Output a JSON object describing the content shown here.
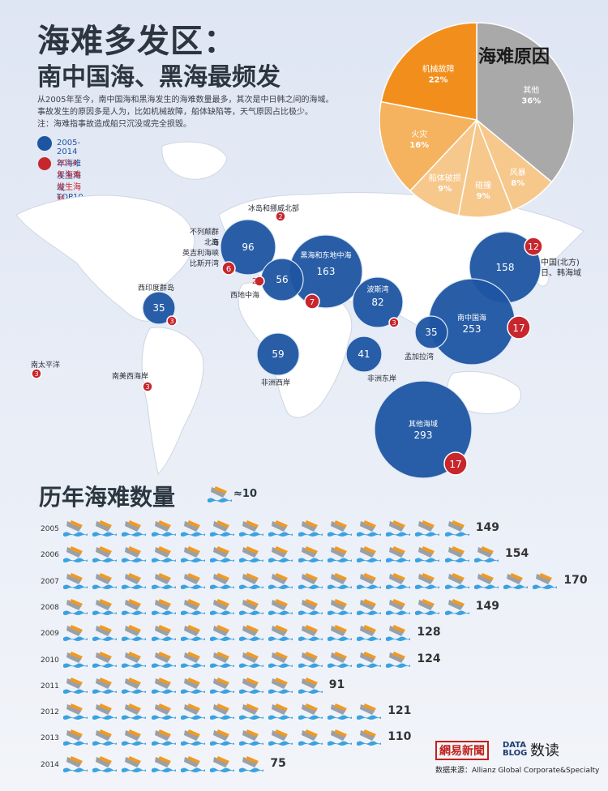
{
  "header": {
    "title_line1": "海难多发区：",
    "title_line2": "南中国海、黑海最频发",
    "desc_line1": "从2005年至今，南中国海和黑海发生的海难数量最多，其次是中日韩之间的海域。",
    "desc_line2": "事故发生的原因多是人为，比如机械故障，船体缺陷等，天气原因占比极少。",
    "desc_line3": "注：海难指事故造成船只沉没或完全损毁。"
  },
  "legend": {
    "blue_label": "2005-2014年海难发生海域TOP10",
    "red_label": "2014年海难发生海域TOP10",
    "blue_color": "#1d55a2",
    "red_color": "#c8262d"
  },
  "pie_title": "海难原因",
  "chart_data": [
    {
      "type": "pie",
      "title": "海难原因",
      "slices": [
        {
          "label": "其他",
          "value": 36,
          "text": "36%",
          "color": "#a9a9a9"
        },
        {
          "label": "风暴",
          "value": 8,
          "text": "8%",
          "color": "#f6c88c"
        },
        {
          "label": "碰撞",
          "value": 9,
          "text": "9%",
          "color": "#f6c88c"
        },
        {
          "label": "船体破损",
          "value": 9,
          "text": "9%",
          "color": "#f6c88c"
        },
        {
          "label": "火灾",
          "value": 16,
          "text": "16%",
          "color": "#f6b35f"
        },
        {
          "label": "机械故障",
          "value": 22,
          "text": "22%",
          "color": "#f28f1c"
        }
      ]
    },
    {
      "type": "bubble-map",
      "series": [
        {
          "name": "2005-2014年海难发生海域TOP10",
          "points": [
            {
              "label": "不列颠群岛 北海 英吉利海峡 比斯开湾",
              "value": 96
            },
            {
              "label": "黑海和东地中海",
              "value": 163
            },
            {
              "label": "西地中海",
              "value": 56
            },
            {
              "label": "中国(北方) 日、韩海域",
              "value": 158
            },
            {
              "label": "南中国海",
              "value": 253
            },
            {
              "label": "波斯湾",
              "value": 82
            },
            {
              "label": "西印度群岛",
              "value": 35
            },
            {
              "label": "孟加拉湾",
              "value": 35
            },
            {
              "label": "非洲西岸",
              "value": 59
            },
            {
              "label": "非洲东岸",
              "value": 41
            },
            {
              "label": "其他海域",
              "value": 293
            }
          ]
        },
        {
          "name": "2014年海难发生海域TOP10",
          "points": [
            {
              "label": "冰岛和挪威北部",
              "value": 2
            },
            {
              "label": "不列颠群岛 北海 英吉利海峡 比斯开湾",
              "value": 6
            },
            {
              "label": "西地中海",
              "value": 2
            },
            {
              "label": "黑海和东地中海",
              "value": 7
            },
            {
              "label": "中国(北方) 日、韩海域",
              "value": 12
            },
            {
              "label": "南中国海",
              "value": 17
            },
            {
              "label": "波斯湾",
              "value": 3
            },
            {
              "label": "西印度群岛",
              "value": 3
            },
            {
              "label": "南太平洋",
              "value": 3
            },
            {
              "label": "南美西海岸",
              "value": 3
            },
            {
              "label": "其他海域",
              "value": 17
            }
          ]
        }
      ]
    },
    {
      "type": "bar",
      "title": "历年海难数量",
      "unit_text": "≈10",
      "categories": [
        "2005",
        "2006",
        "2007",
        "2008",
        "2009",
        "2010",
        "2011",
        "2012",
        "2013",
        "2014"
      ],
      "values": [
        149,
        154,
        170,
        149,
        128,
        124,
        91,
        121,
        110,
        75
      ],
      "icon_counts": [
        14,
        15,
        17,
        14,
        12,
        12,
        9,
        11,
        11,
        7
      ]
    }
  ],
  "map_labels": {
    "uk": [
      "不列颠群岛",
      "北海",
      "英吉利海峡",
      "比斯开湾"
    ],
    "iceland": "冰岛和挪威北部",
    "wmed": "西地中海",
    "black": "黑海和东地中海",
    "china_n": [
      "中国(北方)",
      "日、韩海域"
    ],
    "scs": "南中国海",
    "persian": "波斯湾",
    "wi": "西印度群岛",
    "bengal": "孟加拉湾",
    "waf": "非洲西岸",
    "eaf": "非洲东岸",
    "other": "其他海域",
    "spac": "南太平洋",
    "sam": "南美西海岸"
  },
  "year_section": {
    "title": "历年海难数量",
    "unit": "≈10"
  },
  "footer": {
    "brand1": "網易新聞",
    "brand2a": "DATA",
    "brand2b": "BLOG",
    "brand3": "数读",
    "source": "数据来源：Allianz Global Corporate&Specialty"
  }
}
